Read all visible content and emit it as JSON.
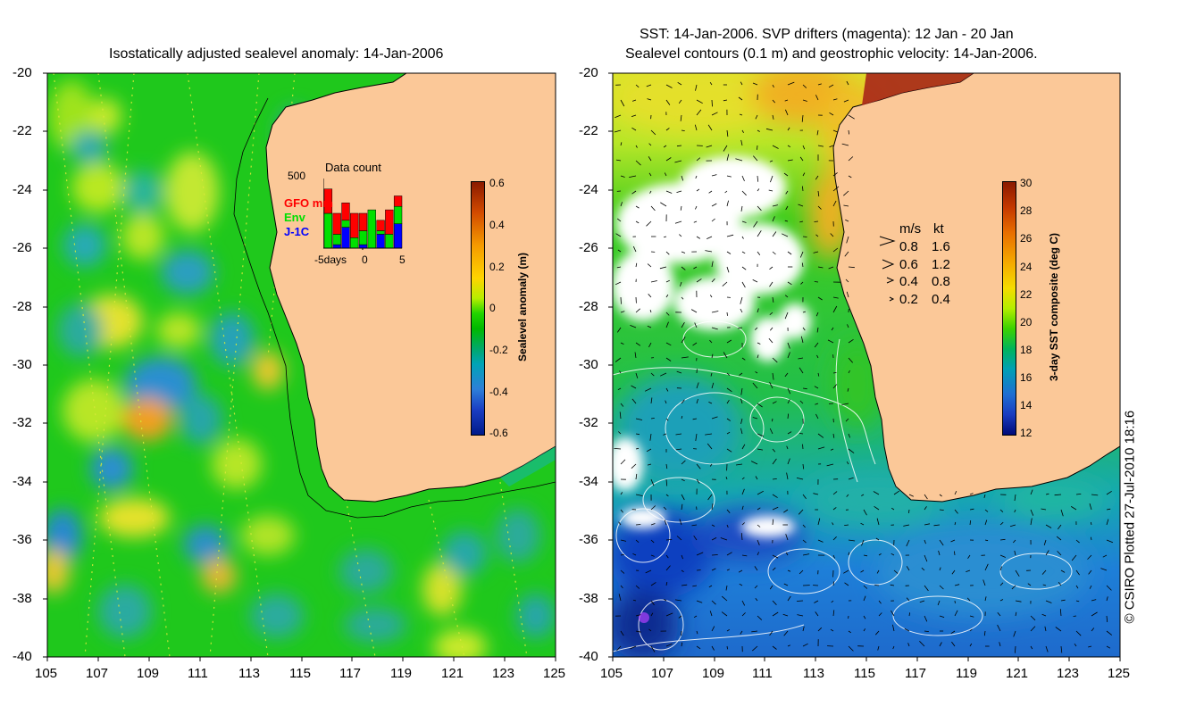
{
  "left_panel": {
    "title": "Isostatically adjusted sealevel anomaly: 14-Jan-2006",
    "colorbar": {
      "label": "Sealevel anomaly (m)",
      "ticks": [
        "0.6",
        "0.4",
        "0.2",
        "0",
        "-0.2",
        "-0.4",
        "-0.6"
      ],
      "colors": [
        "#8b1a00",
        "#d24a00",
        "#f59a00",
        "#ffd400",
        "#b7ee00",
        "#22d400",
        "#00b800",
        "#00a86a",
        "#00a4b6",
        "#2d7fd8",
        "#1a3fc4",
        "#001a8a"
      ]
    },
    "data_count_inset": {
      "title": "Data count",
      "ymax": "500",
      "x_tick_left": "-5days",
      "x_tick_mid": "0",
      "x_tick_right": "5",
      "series_labels": [
        "GFO mm",
        "Env",
        "J-1C"
      ],
      "series_colors": [
        "#ff0000",
        "#00e000",
        "#0000ff"
      ],
      "bars": [
        {
          "gfo": 0.35,
          "env": 0.5,
          "j1c": 0.0
        },
        {
          "gfo": 0.3,
          "env": 0.15,
          "j1c": 0.05
        },
        {
          "gfo": 0.25,
          "env": 0.1,
          "j1c": 0.3
        },
        {
          "gfo": 0.35,
          "env": 0.15,
          "j1c": 0.0
        },
        {
          "gfo": 0.25,
          "env": 0.2,
          "j1c": 0.05
        },
        {
          "gfo": 0.0,
          "env": 0.55,
          "j1c": 0.0
        },
        {
          "gfo": 0.15,
          "env": 0.05,
          "j1c": 0.2
        },
        {
          "gfo": 0.35,
          "env": 0.2,
          "j1c": 0.0
        },
        {
          "gfo": 0.15,
          "env": 0.25,
          "j1c": 0.35
        }
      ]
    }
  },
  "right_panel": {
    "title_line1": "SST: 14-Jan-2006. SVP drifters (magenta): 12 Jan - 20 Jan",
    "title_line2": "Sealevel contours (0.1 m) and geostrophic velocity: 14-Jan-2006.",
    "colorbar": {
      "label": "3-day SST composite (deg C)",
      "ticks": [
        "30",
        "28",
        "26",
        "24",
        "22",
        "20",
        "18",
        "16",
        "14",
        "12"
      ],
      "colors": [
        "#8b1a00",
        "#c43800",
        "#e86e00",
        "#f5aa00",
        "#f5dc00",
        "#b4ee00",
        "#3cd200",
        "#00b45a",
        "#00a0b4",
        "#1e6ed2",
        "#1a3cc0",
        "#000a78"
      ]
    },
    "velocity_legend": {
      "header_ms": "m/s",
      "header_kt": "kt",
      "rows": [
        {
          "ms": "0.8",
          "kt": "1.6"
        },
        {
          "ms": "0.6",
          "kt": "1.2"
        },
        {
          "ms": "0.4",
          "kt": "0.8"
        },
        {
          "ms": "0.2",
          "kt": "0.4"
        }
      ]
    }
  },
  "axes": {
    "lat_ticks": [
      "-20",
      "-22",
      "-24",
      "-26",
      "-28",
      "-30",
      "-32",
      "-34",
      "-36",
      "-38",
      "-40"
    ],
    "lon_ticks": [
      "105",
      "107",
      "109",
      "111",
      "113",
      "115",
      "117",
      "119",
      "121",
      "123",
      "125"
    ]
  },
  "credit": "© CSIRO Plotted 27-Jul-2010 18:16",
  "colors": {
    "land": "#fbc898",
    "ocean_base": "#1fc81c",
    "ocean_cold": "#1e7fd8",
    "coastline": "#000000"
  }
}
